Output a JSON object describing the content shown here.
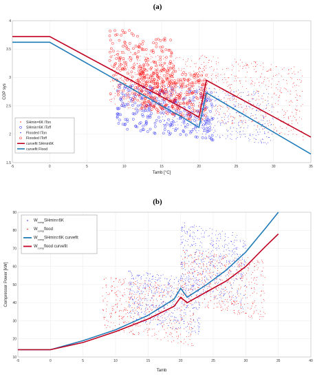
{
  "colors": {
    "red": "#ff0000",
    "blue": "#1a1aff",
    "dark_red": "#c00020",
    "steel_blue": "#1f7ab8"
  },
  "chart_data": [
    {
      "panel_label": "(a)",
      "type": "scatter",
      "xlabel": "Tamb [°C]",
      "ylabel": "COP sys",
      "xlim": [
        -5,
        35
      ],
      "ylim": [
        1.5,
        4
      ],
      "xticks": [
        "-5",
        "0",
        "5",
        "10",
        "15",
        "20",
        "25",
        "30",
        "35"
      ],
      "yticks": [
        "1.5",
        "2",
        "2.5",
        "3",
        "3.5",
        "4"
      ],
      "grid": true,
      "legend_position": "bottom-left",
      "series": [
        {
          "name": "SHmin=6K ITon",
          "marker": "dot",
          "color": "red",
          "clusters": [
            {
              "x": [
                8,
                21
              ],
              "y": [
                2.2,
                3.5
              ]
            },
            {
              "x": [
                20,
                34
              ],
              "y": [
                1.9,
                3.4
              ]
            }
          ]
        },
        {
          "name": "SHmin=6K IToff",
          "marker": "circle",
          "color": "blue",
          "clusters": [
            {
              "x": [
                9,
                22
              ],
              "y": [
                1.85,
                2.9
              ]
            }
          ]
        },
        {
          "name": "Flooded ITon",
          "marker": "dot",
          "color": "blue",
          "clusters": [
            {
              "x": [
                15,
                30
              ],
              "y": [
                1.8,
                2.9
              ]
            }
          ]
        },
        {
          "name": "Flooded IToff",
          "marker": "circle",
          "color": "red",
          "clusters": [
            {
              "x": [
                8,
                17
              ],
              "y": [
                2.3,
                3.9
              ]
            },
            {
              "x": [
                12,
                21
              ],
              "y": [
                2.2,
                3.2
              ]
            }
          ]
        },
        {
          "name": "curvefit SHmin6K",
          "type": "line",
          "color": "dark_red",
          "x": [
            -5,
            0,
            18,
            20,
            21,
            35
          ],
          "y": [
            3.72,
            3.72,
            2.45,
            2.3,
            2.95,
            1.95
          ]
        },
        {
          "name": "curvefit Flood",
          "type": "line",
          "color": "steel_blue",
          "x": [
            -5,
            0,
            18,
            20,
            21,
            35
          ],
          "y": [
            3.62,
            3.62,
            2.28,
            2.12,
            2.73,
            1.65
          ]
        }
      ]
    },
    {
      "panel_label": "(b)",
      "type": "scatter",
      "xlabel": "Tamb",
      "ylabel": "Compressor Power [kW]",
      "xlim": [
        -5,
        40
      ],
      "ylim": [
        10,
        90
      ],
      "xticks": [
        "-5",
        "0",
        "5",
        "10",
        "15",
        "20",
        "25",
        "30",
        "35",
        "40"
      ],
      "yticks": [
        "10",
        "20",
        "30",
        "40",
        "50",
        "60",
        "70",
        "80",
        "90"
      ],
      "grid": true,
      "legend_position": "top-left",
      "series": [
        {
          "name_main": "W",
          "name_sub": "comp",
          "name_rest": "SHmin=6K",
          "marker": "dot",
          "color": "blue",
          "clusters": [
            {
              "x": [
                12,
                23
              ],
              "y": [
                22,
                58
              ]
            },
            {
              "x": [
                20,
                30
              ],
              "y": [
                36,
                85
              ]
            }
          ]
        },
        {
          "name_main": "W",
          "name_sub": "comp",
          "name_rest": "flood",
          "marker": "dot",
          "color": "red",
          "clusters": [
            {
              "x": [
                8,
                22
              ],
              "y": [
                16,
                55
              ]
            },
            {
              "x": [
                20,
                33
              ],
              "y": [
                30,
                70
              ]
            }
          ]
        },
        {
          "name_main": "W",
          "name_sub": "comp",
          "name_rest": "SHmin=6K curvefit",
          "type": "line",
          "color": "steel_blue",
          "x": [
            -5,
            0,
            5,
            10,
            15,
            19,
            20,
            21,
            24,
            27,
            30,
            33,
            35
          ],
          "y": [
            14,
            14,
            19,
            25,
            33,
            42,
            48,
            43,
            50,
            58,
            68,
            81,
            90
          ]
        },
        {
          "name_main": "W",
          "name_sub": "comp",
          "name_rest": "flood curvefit",
          "type": "line",
          "color": "dark_red",
          "x": [
            -5,
            0,
            5,
            10,
            15,
            19,
            20,
            21,
            24,
            27,
            30,
            33,
            35
          ],
          "y": [
            14,
            14,
            18,
            24,
            31,
            38,
            43,
            40,
            46,
            52,
            60,
            71,
            78
          ]
        }
      ]
    }
  ]
}
